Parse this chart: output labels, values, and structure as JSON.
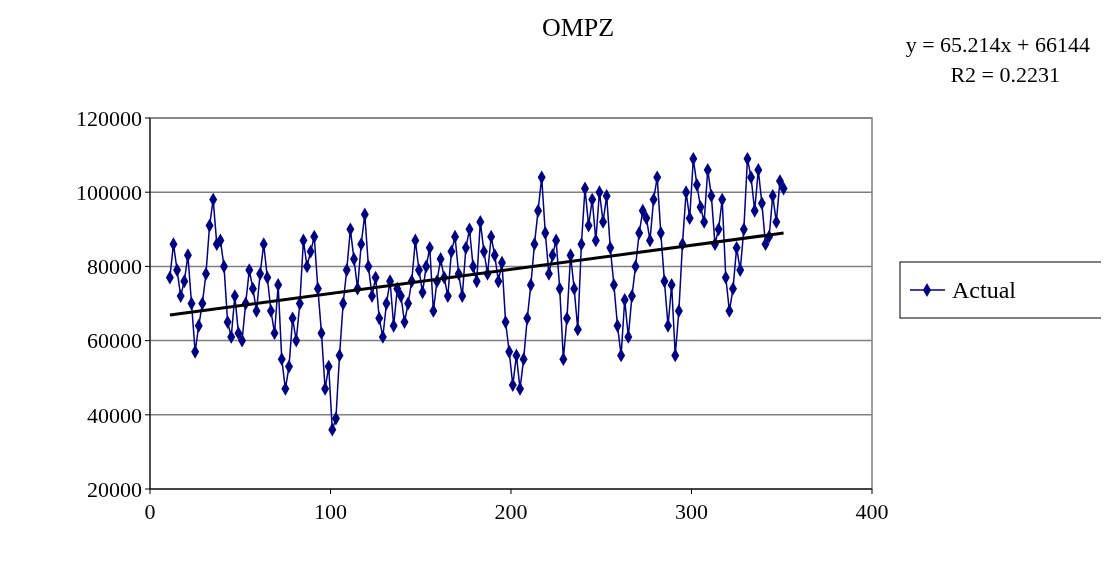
{
  "chart_data": {
    "type": "line",
    "title": "OMPZ",
    "x": [
      11,
      13,
      15,
      17,
      19,
      21,
      23,
      25,
      27,
      29,
      31,
      33,
      35,
      37,
      39,
      41,
      43,
      45,
      47,
      49,
      51,
      53,
      55,
      57,
      59,
      61,
      63,
      65,
      67,
      69,
      71,
      73,
      75,
      77,
      79,
      81,
      83,
      85,
      87,
      89,
      91,
      93,
      95,
      97,
      99,
      101,
      103,
      105,
      107,
      109,
      111,
      113,
      115,
      117,
      119,
      121,
      123,
      125,
      127,
      129,
      131,
      133,
      135,
      137,
      139,
      141,
      143,
      145,
      147,
      149,
      151,
      153,
      155,
      157,
      159,
      161,
      163,
      165,
      167,
      169,
      171,
      173,
      175,
      177,
      179,
      181,
      183,
      185,
      187,
      189,
      191,
      193,
      195,
      197,
      199,
      201,
      203,
      205,
      207,
      209,
      211,
      213,
      215,
      217,
      219,
      221,
      223,
      225,
      227,
      229,
      231,
      233,
      235,
      237,
      239,
      241,
      243,
      245,
      247,
      249,
      251,
      253,
      255,
      257,
      259,
      261,
      263,
      265,
      267,
      269,
      271,
      273,
      275,
      277,
      279,
      281,
      283,
      285,
      287,
      289,
      291,
      293,
      295,
      297,
      299,
      301,
      303,
      305,
      307,
      309,
      311,
      313,
      315,
      317,
      319,
      321,
      323,
      325,
      327,
      329,
      331,
      333,
      335,
      337,
      339,
      341,
      343,
      345,
      347,
      349,
      351
    ],
    "series": [
      {
        "name": "Actual",
        "color": "#000080",
        "marker": "diamond",
        "values": [
          77000,
          86000,
          79000,
          72000,
          76000,
          83000,
          70000,
          57000,
          64000,
          70000,
          78000,
          91000,
          98000,
          86000,
          87000,
          80000,
          65000,
          61000,
          72000,
          62000,
          60000,
          70000,
          79000,
          74000,
          68000,
          78000,
          86000,
          77000,
          68000,
          62000,
          75000,
          55000,
          47000,
          53000,
          66000,
          60000,
          70000,
          87000,
          80000,
          84000,
          88000,
          74000,
          62000,
          47000,
          53000,
          36000,
          39000,
          56000,
          70000,
          79000,
          90000,
          82000,
          74000,
          86000,
          94000,
          80000,
          72000,
          77000,
          66000,
          61000,
          70000,
          76000,
          64000,
          74000,
          72000,
          65000,
          70000,
          76000,
          87000,
          79000,
          73000,
          80000,
          85000,
          68000,
          76000,
          82000,
          77000,
          72000,
          84000,
          88000,
          78000,
          72000,
          85000,
          90000,
          80000,
          76000,
          92000,
          84000,
          78000,
          88000,
          83000,
          76000,
          81000,
          65000,
          57000,
          48000,
          56000,
          47000,
          55000,
          66000,
          75000,
          86000,
          95000,
          104000,
          89000,
          78000,
          83000,
          87000,
          74000,
          55000,
          66000,
          83000,
          74000,
          63000,
          86000,
          101000,
          91000,
          98000,
          87000,
          100000,
          92000,
          99000,
          85000,
          75000,
          64000,
          56000,
          71000,
          61000,
          72000,
          80000,
          89000,
          95000,
          93000,
          87000,
          98000,
          104000,
          89000,
          76000,
          64000,
          75000,
          56000,
          68000,
          86000,
          100000,
          93000,
          109000,
          102000,
          96000,
          92000,
          106000,
          99000,
          86000,
          90000,
          98000,
          77000,
          68000,
          74000,
          85000,
          79000,
          90000,
          109000,
          104000,
          95000,
          106000,
          97000,
          86000,
          88000,
          99000,
          92000,
          103000,
          101000
        ]
      },
      {
        "type": "line",
        "color": "#000000",
        "marker": "none",
        "x": [
          11,
          351
        ],
        "values": [
          66900,
          89000
        ]
      }
    ],
    "xlim": [
      0,
      400
    ],
    "xticks": [
      0,
      100,
      200,
      300,
      400
    ],
    "ylim": [
      20000,
      120000
    ],
    "yticks": [
      20000,
      40000,
      60000,
      80000,
      100000,
      120000
    ],
    "grid": "y",
    "legend": "right",
    "annotations": [
      "y = 65.214x + 66144",
      "R2 = 0.2231"
    ]
  }
}
